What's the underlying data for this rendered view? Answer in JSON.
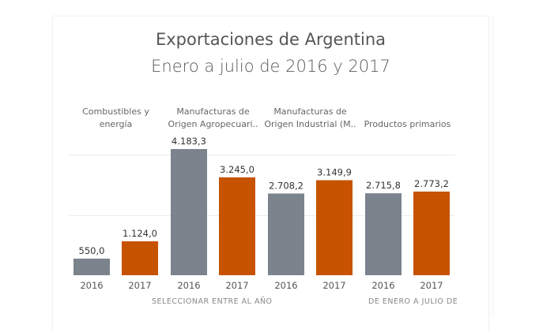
{
  "chart_data": {
    "type": "bar",
    "title": "Exportaciones de Argentina",
    "subtitle": "Enero a julio de 2016 y 2017",
    "xlabel": "",
    "ylabel": "",
    "ylim": [
      0,
      4400
    ],
    "grid": true,
    "gridlines": [
      2000,
      4000
    ],
    "groups": [
      {
        "label_lines": [
          "Combustibles y",
          "energía"
        ],
        "bars": [
          {
            "year": "2016",
            "value": 550.0,
            "label": "550,0"
          },
          {
            "year": "2017",
            "value": 1124.0,
            "label": "1.124,0"
          }
        ]
      },
      {
        "label_lines": [
          "Manufacturas de",
          "Origen Agropecuari.."
        ],
        "bars": [
          {
            "year": "2016",
            "value": 4183.3,
            "label": "4.183,3"
          },
          {
            "year": "2017",
            "value": 3245.0,
            "label": "3.245,0"
          }
        ]
      },
      {
        "label_lines": [
          "Manufacturas de",
          "Origen Industrial (M.."
        ],
        "bars": [
          {
            "year": "2016",
            "value": 2708.2,
            "label": "2.708,2"
          },
          {
            "year": "2017",
            "value": 3149.9,
            "label": "3.149,9"
          }
        ]
      },
      {
        "label_lines": [
          "Productos primarios"
        ],
        "bars": [
          {
            "year": "2016",
            "value": 2715.8,
            "label": "2.715,8"
          },
          {
            "year": "2017",
            "value": 2773.2,
            "label": "2.773,2"
          }
        ]
      }
    ],
    "series_colors": {
      "2016": "#7b838d",
      "2017": "#c75200"
    }
  },
  "footer": {
    "left_text": "SELECCIONAR ENTRE AL AÑO",
    "right_text": "DE ENERO A JULIO DE"
  }
}
